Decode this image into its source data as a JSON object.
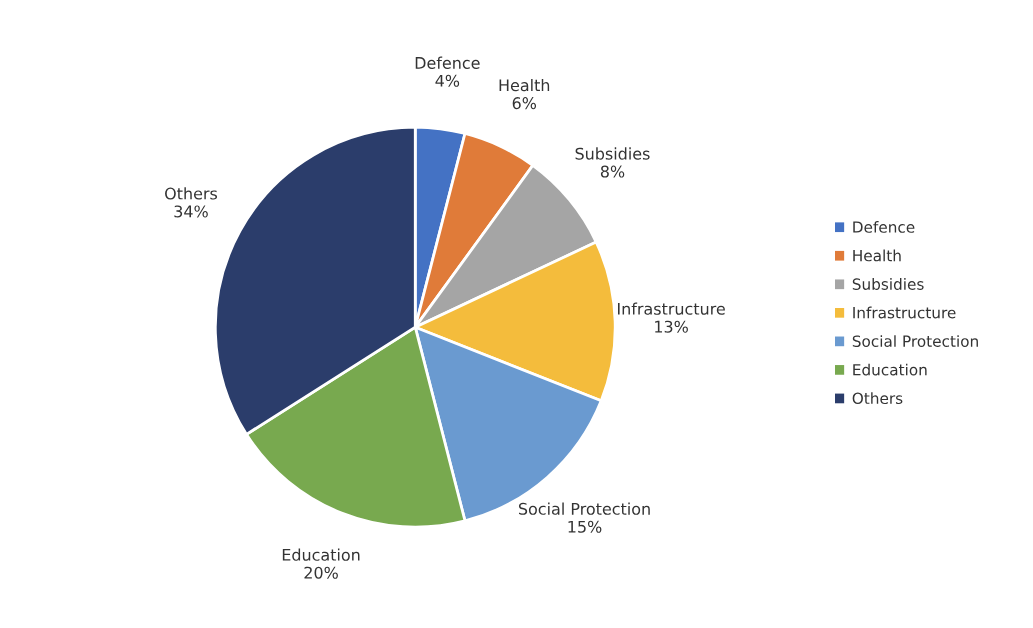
{
  "chart_data": {
    "type": "pie",
    "categories": [
      "Defence",
      "Health",
      "Subsidies",
      "Infrastructure",
      "Social Protection",
      "Education",
      "Others"
    ],
    "values": [
      4,
      6,
      8,
      13,
      15,
      20,
      34
    ],
    "value_labels": [
      "4%",
      "6%",
      "8%",
      "13%",
      "15%",
      "20%",
      "34%"
    ],
    "colors": [
      "#4472c4",
      "#e07b39",
      "#a5a5a5",
      "#f4bc3c",
      "#6a9ad0",
      "#78a94f",
      "#2b3d6b"
    ],
    "legend": "right"
  }
}
